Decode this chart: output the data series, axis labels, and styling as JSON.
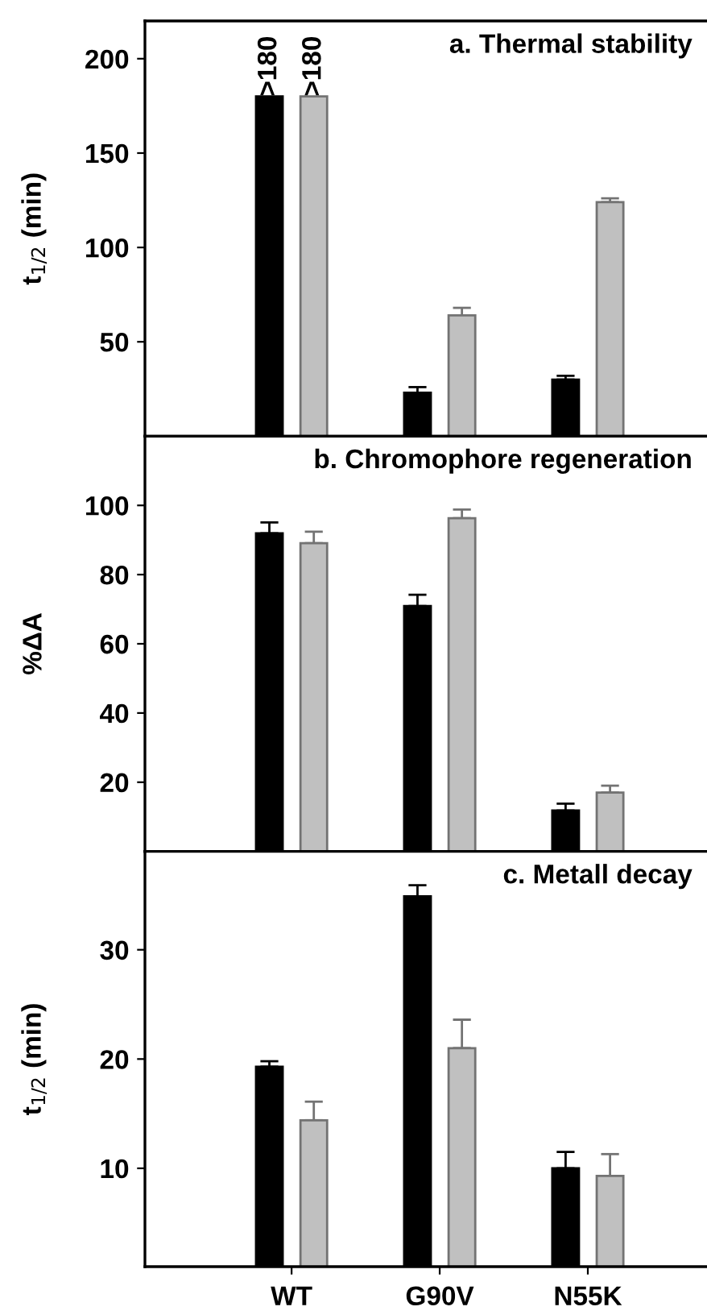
{
  "chart_data": [
    {
      "type": "bar",
      "title": "a. Thermal stability",
      "ylabel": "t$_{1/2}$ (min)",
      "categories": [
        null,
        null,
        null
      ],
      "ylim": [
        0,
        220
      ],
      "yticks": [
        50,
        100,
        150,
        200
      ],
      "tick_labels": "y",
      "grid": false,
      "legend": false,
      "series": [
        {
          "color": "#000000",
          "values": [
            180,
            23,
            30
          ],
          "errors": [
            null,
            [
              23,
              26
            ],
            [
              30,
              32
            ]
          ],
          "value_labels": [
            ">180",
            null,
            null
          ]
        },
        {
          "color": "#c0c0c0",
          "values": [
            180,
            64,
            124
          ],
          "errors": [
            null,
            [
              64,
              68
            ],
            [
              124,
              126
            ]
          ],
          "value_labels": [
            ">180",
            null,
            null
          ]
        }
      ]
    },
    {
      "type": "bar",
      "title": "b. Chromophore regeneration",
      "ylabel": "%ΔA",
      "categories": [
        null,
        null,
        null
      ],
      "ylim": [
        0,
        120
      ],
      "yticks": [
        20,
        40,
        60,
        80,
        100
      ],
      "tick_labels": "y",
      "grid": false,
      "legend": false,
      "series": [
        {
          "color": "#000000",
          "values": [
            91.9,
            70.9,
            11.8
          ],
          "errors": [
            [
              91.9,
              95.1
            ],
            [
              70.9,
              74.2
            ],
            [
              11.8,
              13.8
            ]
          ]
        },
        {
          "color": "#c0c0c0",
          "values": [
            89.1,
            96.3,
            17.0
          ],
          "errors": [
            [
              89.1,
              92.4
            ],
            [
              96.3,
              98.8
            ],
            [
              17.0,
              19.0
            ]
          ]
        }
      ]
    },
    {
      "type": "bar",
      "title": "c. Metall decay",
      "ylabel": "t$_{1/2}$ (min)",
      "categories": [
        "WT",
        "G90V",
        "N55K"
      ],
      "ylim": [
        1,
        39
      ],
      "yticks": [
        10,
        20,
        30
      ],
      "grid": false,
      "legend": false,
      "series": [
        {
          "color": "#000000",
          "values": [
            19.3,
            34.9,
            10.0
          ],
          "errors": [
            [
              19.3,
              19.8
            ],
            [
              34.9,
              35.9
            ],
            [
              10.0,
              11.5
            ]
          ]
        },
        {
          "color": "#c0c0c0",
          "values": [
            14.4,
            21.0,
            9.3
          ],
          "errors": [
            [
              14.4,
              16.1
            ],
            [
              21.0,
              23.6
            ],
            [
              9.3,
              11.3
            ]
          ]
        }
      ]
    }
  ]
}
